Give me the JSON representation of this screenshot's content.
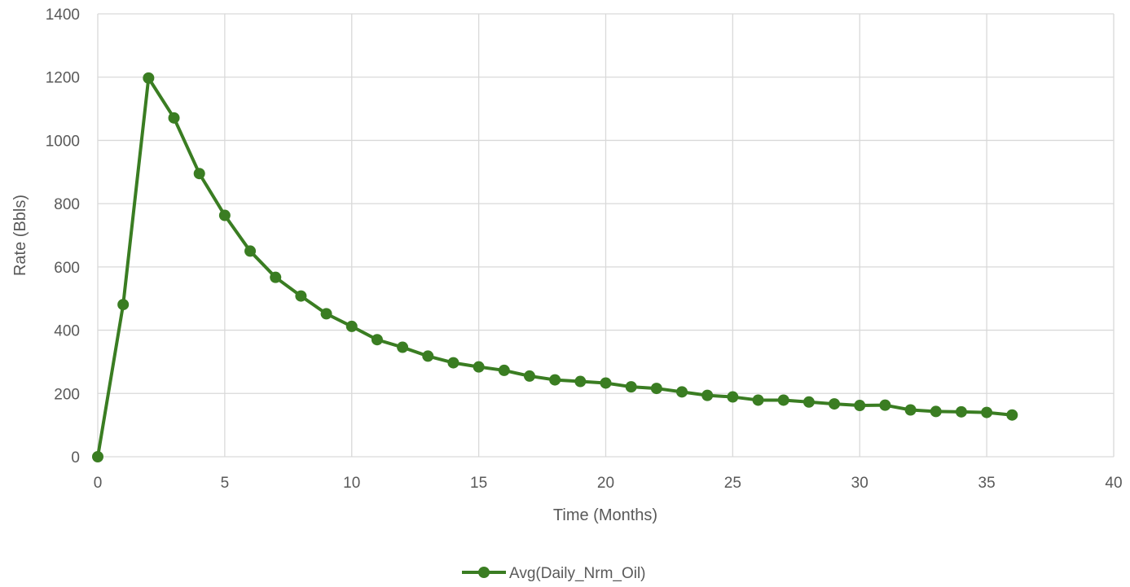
{
  "chart_data": {
    "type": "line",
    "xlabel": "Time (Months)",
    "ylabel": "Rate (Bbls)",
    "xlim": [
      0,
      40
    ],
    "ylim": [
      0,
      1400
    ],
    "x_ticks": [
      0,
      5,
      10,
      15,
      20,
      25,
      30,
      35,
      40
    ],
    "y_ticks": [
      0,
      200,
      400,
      600,
      800,
      1000,
      1200,
      1400
    ],
    "grid": true,
    "legend_position": "bottom",
    "series": [
      {
        "name": "Avg(Daily_Nrm_Oil)",
        "color": "#3a7d22",
        "marker": "circle",
        "x": [
          0,
          1,
          2,
          3,
          4,
          5,
          6,
          7,
          8,
          9,
          10,
          11,
          12,
          13,
          14,
          15,
          16,
          17,
          18,
          19,
          20,
          21,
          22,
          23,
          24,
          25,
          26,
          27,
          28,
          29,
          30,
          31,
          32,
          33,
          34,
          35,
          36
        ],
        "y": [
          0,
          481,
          1197,
          1071,
          895,
          763,
          650,
          567,
          508,
          452,
          412,
          370,
          346,
          318,
          297,
          284,
          273,
          255,
          243,
          238,
          233,
          221,
          216,
          205,
          194,
          189,
          179,
          179,
          173,
          167,
          162,
          163,
          148,
          143,
          142,
          140,
          132
        ]
      }
    ]
  }
}
